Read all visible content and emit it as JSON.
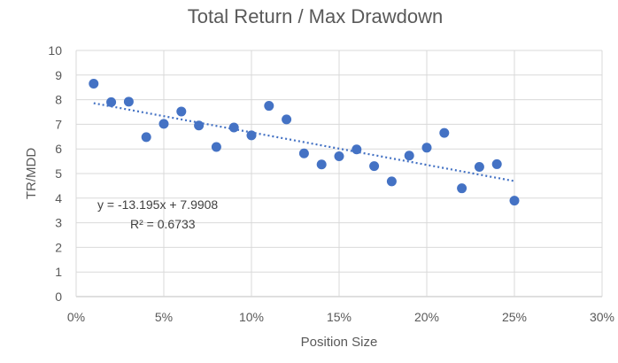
{
  "chart_data": {
    "type": "scatter",
    "title": "Total Return / Max Drawdown",
    "xlabel": "Position Size",
    "ylabel": "TR/MDD",
    "xlim": [
      0,
      0.3
    ],
    "ylim": [
      0,
      10
    ],
    "x_ticks": [
      0,
      0.05,
      0.1,
      0.15,
      0.2,
      0.25,
      0.3
    ],
    "x_tick_labels": [
      "0%",
      "5%",
      "10%",
      "15%",
      "20%",
      "25%",
      "30%"
    ],
    "y_ticks": [
      0,
      1,
      2,
      3,
      4,
      5,
      6,
      7,
      8,
      9,
      10
    ],
    "y_tick_labels": [
      "0",
      "1",
      "2",
      "3",
      "4",
      "5",
      "6",
      "7",
      "8",
      "9",
      "10"
    ],
    "grid": "vertical-and-horizontal",
    "series": [
      {
        "x": [
          0.01,
          0.02,
          0.03,
          0.04,
          0.05,
          0.06,
          0.07,
          0.08,
          0.09,
          0.1,
          0.11,
          0.12,
          0.13,
          0.14,
          0.15,
          0.16,
          0.17,
          0.18,
          0.19,
          0.2,
          0.21,
          0.22,
          0.23,
          0.24,
          0.25
        ],
        "y": [
          8.65,
          7.9,
          7.92,
          6.48,
          7.02,
          7.52,
          6.95,
          6.08,
          6.87,
          6.55,
          7.75,
          7.2,
          5.82,
          5.37,
          5.7,
          5.98,
          5.3,
          4.68,
          5.73,
          6.05,
          6.65,
          4.4,
          5.27,
          5.38,
          3.9
        ]
      }
    ],
    "trendline": {
      "type": "linear",
      "slope": -13.195,
      "intercept": 7.9908,
      "x_range": [
        0.01,
        0.25
      ],
      "equation_label": "y = -13.195x + 7.9908",
      "r2_label": "R² = 0.6733"
    },
    "colors": {
      "marker": "#4472c4",
      "trendline": "#4472c4",
      "grid": "#d9d9d9",
      "text": "#595959"
    }
  }
}
